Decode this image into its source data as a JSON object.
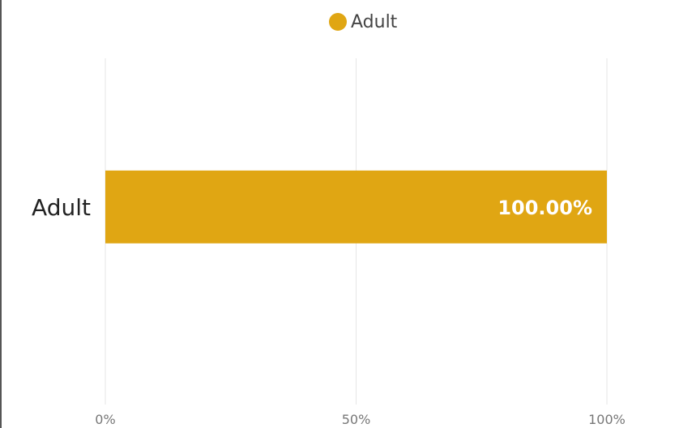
{
  "chart_data": {
    "type": "bar",
    "orientation": "horizontal",
    "categories": [
      "Adult"
    ],
    "series": [
      {
        "name": "Adult",
        "values": [
          100.0
        ],
        "color": "#E0A613",
        "data_labels": [
          "100.00%"
        ]
      }
    ],
    "xlim": [
      0,
      100
    ],
    "x_ticks": [
      0,
      50,
      100
    ],
    "x_tick_labels": [
      "0%",
      "50%",
      "100%"
    ],
    "grid": true,
    "legend_position": "top-center",
    "title": "",
    "xlabel": "",
    "ylabel": ""
  },
  "legend": {
    "label": "Adult",
    "color": "#E0A613"
  },
  "colors": {
    "gridline": "#E6E6E6"
  }
}
